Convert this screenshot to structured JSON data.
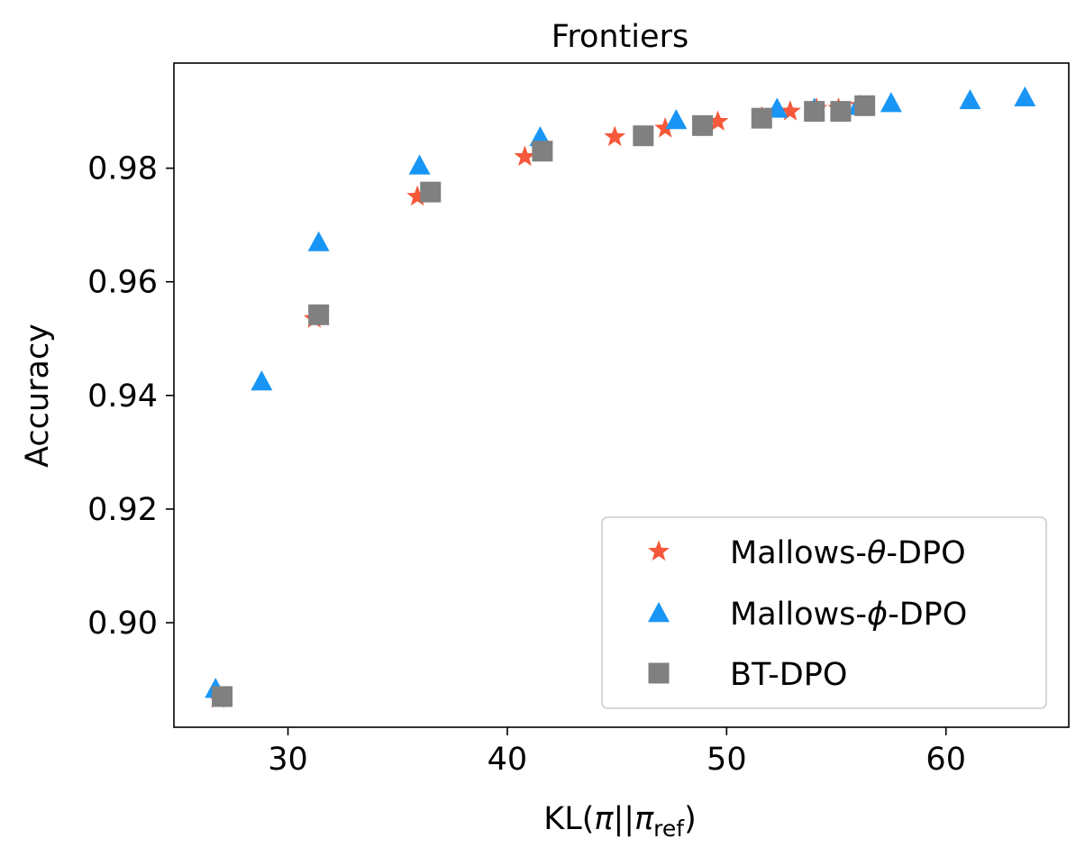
{
  "chart_data": {
    "type": "scatter",
    "title": "Frontiers",
    "xlabel": {
      "prefix": "KL(",
      "pi": "π",
      "sep": "||",
      "pi2": "π",
      "sub": "ref",
      "suffix": ")"
    },
    "ylabel": "Accuracy",
    "xlim": [
      24.8,
      65.6
    ],
    "ylim": [
      0.8816,
      0.9985
    ],
    "xticks": [
      30,
      40,
      50,
      60
    ],
    "yticks": [
      0.9,
      0.92,
      0.94,
      0.96,
      0.98
    ],
    "xtick_labels": [
      "30",
      "40",
      "50",
      "60"
    ],
    "ytick_labels": [
      "0.90",
      "0.92",
      "0.94",
      "0.96",
      "0.98"
    ],
    "grid": false,
    "legend_position": "lower-right",
    "series": [
      {
        "name_parts": [
          "Mallows-",
          "θ",
          "-DPO"
        ],
        "marker": "star",
        "color": "#f5583a",
        "x": [
          26.8,
          31.2,
          35.9,
          40.8,
          44.9,
          47.2,
          49.6,
          51.6,
          52.9,
          54.1,
          55.1,
          56.1
        ],
        "y": [
          0.8866,
          0.9535,
          0.975,
          0.982,
          0.9855,
          0.987,
          0.9882,
          0.989,
          0.99,
          0.9905,
          0.9905,
          0.991
        ]
      },
      {
        "name_parts": [
          "Mallows-",
          "ϕ",
          "-DPO"
        ],
        "marker": "triangle",
        "color": "#1996f5",
        "x": [
          26.7,
          28.8,
          31.4,
          36.0,
          41.5,
          47.7,
          52.3,
          54.0,
          56.0,
          57.5,
          61.1,
          63.6
        ],
        "y": [
          0.8884,
          0.9425,
          0.967,
          0.9805,
          0.9855,
          0.9885,
          0.9905,
          0.9905,
          0.991,
          0.9915,
          0.992,
          0.9925
        ]
      },
      {
        "name_parts": [
          "BT-DPO",
          "",
          ""
        ],
        "marker": "square",
        "color": "#808080",
        "x": [
          27.0,
          31.4,
          36.5,
          41.6,
          46.2,
          48.9,
          51.6,
          54.0,
          55.2,
          56.3
        ],
        "y": [
          0.887,
          0.9542,
          0.9758,
          0.983,
          0.9857,
          0.9875,
          0.9888,
          0.99,
          0.99,
          0.991
        ]
      }
    ]
  }
}
